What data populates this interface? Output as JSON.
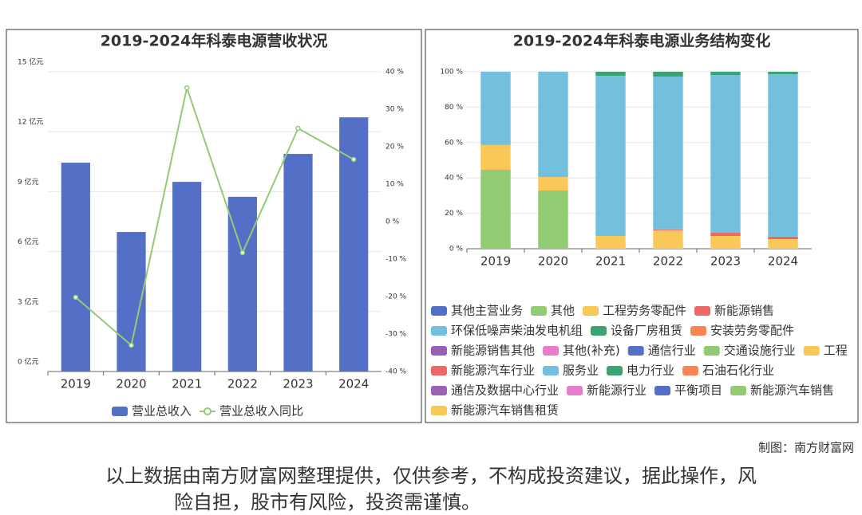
{
  "chart_data": [
    {
      "type": "bar",
      "title": "2019-2024年科泰电源营收状况",
      "categories": [
        "2019",
        "2020",
        "2021",
        "2022",
        "2023",
        "2024"
      ],
      "series": [
        {
          "name": "营业总收入",
          "color": "#5470c6",
          "values": [
            10.45,
            6.98,
            9.49,
            8.74,
            10.89,
            12.72
          ]
        },
        {
          "name": "营业总收入同比",
          "color": "#91cc75",
          "type": "line",
          "axis": "y2",
          "values": [
            -20.2,
            -33,
            35.7,
            -8.3,
            24.9,
            16.6
          ]
        }
      ],
      "ylim": [
        0,
        15
      ],
      "yticks": [
        {
          "value": 0,
          "label": "0 亿元"
        },
        {
          "value": 3,
          "label": "3 亿元"
        },
        {
          "value": 6,
          "label": "6 亿元"
        },
        {
          "value": 9,
          "label": "9 亿元"
        },
        {
          "value": 12,
          "label": "12 亿元"
        },
        {
          "value": 15,
          "label": "15 亿元"
        }
      ],
      "y2lim": [
        -40,
        40
      ],
      "y2ticks": [
        {
          "value": -40,
          "label": "-40 %"
        },
        {
          "value": -30,
          "label": "-30 %"
        },
        {
          "value": -20,
          "label": "-20 %"
        },
        {
          "value": -10,
          "label": "-10 %"
        },
        {
          "value": 0,
          "label": "0 %"
        },
        {
          "value": 10,
          "label": "10 %"
        },
        {
          "value": 20,
          "label": "20 %"
        },
        {
          "value": 30,
          "label": "30 %"
        },
        {
          "value": 40,
          "label": "40 %"
        }
      ],
      "grid": true,
      "legend": "bottom"
    },
    {
      "type": "bar",
      "stacked": true,
      "title": "2019-2024年科泰电源业务结构变化",
      "categories": [
        "2019",
        "2020",
        "2021",
        "2022",
        "2023",
        "2024"
      ],
      "series": [
        {
          "name": "其他主营业务",
          "color": "#5470c6",
          "values": [
            0,
            0,
            0,
            0,
            0,
            0
          ]
        },
        {
          "name": "其他",
          "color": "#91cc75",
          "values": [
            44.6,
            32.9,
            0,
            0,
            0,
            0
          ]
        },
        {
          "name": "工程劳务零配件",
          "color": "#fac858",
          "values": [
            14,
            7.6,
            7.2,
            10.4,
            7.2,
            5.4
          ]
        },
        {
          "name": "新能源销售",
          "color": "#ee6666",
          "values": [
            0,
            0,
            0,
            0.5,
            1.8,
            1.4
          ]
        },
        {
          "name": "环保低噪声柴油发电机组",
          "color": "#73c0de",
          "values": [
            41.4,
            59.5,
            90.5,
            86.4,
            89.2,
            91.8
          ]
        },
        {
          "name": "设备厂房租赁",
          "color": "#3ba272",
          "values": [
            0,
            0,
            2.3,
            2.7,
            1.8,
            1.4
          ]
        },
        {
          "name": "安装劳务零配件",
          "color": "#fc8452",
          "values": [
            0,
            0,
            0,
            0,
            0,
            0
          ]
        },
        {
          "name": "新能源销售其他",
          "color": "#9a60b4",
          "values": [
            0,
            0,
            0,
            0,
            0,
            0
          ]
        },
        {
          "name": "其他(补充)",
          "color": "#ea7ccc",
          "values": [
            0,
            0,
            0,
            0,
            0,
            0
          ]
        },
        {
          "name": "通信行业",
          "color": "#5470c6",
          "values": [
            0,
            0,
            0,
            0,
            0,
            0
          ]
        },
        {
          "name": "交通设施行业",
          "color": "#91cc75",
          "values": [
            0,
            0,
            0,
            0,
            0,
            0
          ]
        },
        {
          "name": "工程",
          "color": "#fac858",
          "values": [
            0,
            0,
            0,
            0,
            0,
            0
          ]
        },
        {
          "name": "新能源汽车行业",
          "color": "#ee6666",
          "values": [
            0,
            0,
            0,
            0,
            0,
            0
          ]
        },
        {
          "name": "服务业",
          "color": "#73c0de",
          "values": [
            0,
            0,
            0,
            0,
            0,
            0
          ]
        },
        {
          "name": "电力行业",
          "color": "#3ba272",
          "values": [
            0,
            0,
            0,
            0,
            0,
            0
          ]
        },
        {
          "name": "石油石化行业",
          "color": "#fc8452",
          "values": [
            0,
            0,
            0,
            0,
            0,
            0
          ]
        },
        {
          "name": "通信及数据中心行业",
          "color": "#9a60b4",
          "values": [
            0,
            0,
            0,
            0,
            0,
            0
          ]
        },
        {
          "name": "新能源行业",
          "color": "#ea7ccc",
          "values": [
            0,
            0,
            0,
            0,
            0,
            0
          ]
        },
        {
          "name": "平衡项目",
          "color": "#5470c6",
          "values": [
            0,
            0,
            0,
            0,
            0,
            0
          ]
        },
        {
          "name": "新能源汽车销售",
          "color": "#91cc75",
          "values": [
            0,
            0,
            0,
            0,
            0,
            0
          ]
        },
        {
          "name": "新能源汽车销售租赁",
          "color": "#fac858",
          "values": [
            0,
            0,
            0,
            0,
            0,
            0
          ]
        }
      ],
      "ylim": [
        0,
        100
      ],
      "yticks": [
        {
          "value": 0,
          "label": "0 %"
        },
        {
          "value": 20,
          "label": "20 %"
        },
        {
          "value": 40,
          "label": "40 %"
        },
        {
          "value": 60,
          "label": "60 %"
        },
        {
          "value": 80,
          "label": "80 %"
        },
        {
          "value": 100,
          "label": "100 %"
        }
      ],
      "grid": true,
      "legend": "bottom"
    }
  ],
  "credit": "制图：南方财富网",
  "disclaimer": [
    "以上数据由南方财富网整理提供，仅供参考，不构成投资建议，据此操作，风",
    "险自担，股市有风险，投资需谨慎。"
  ]
}
